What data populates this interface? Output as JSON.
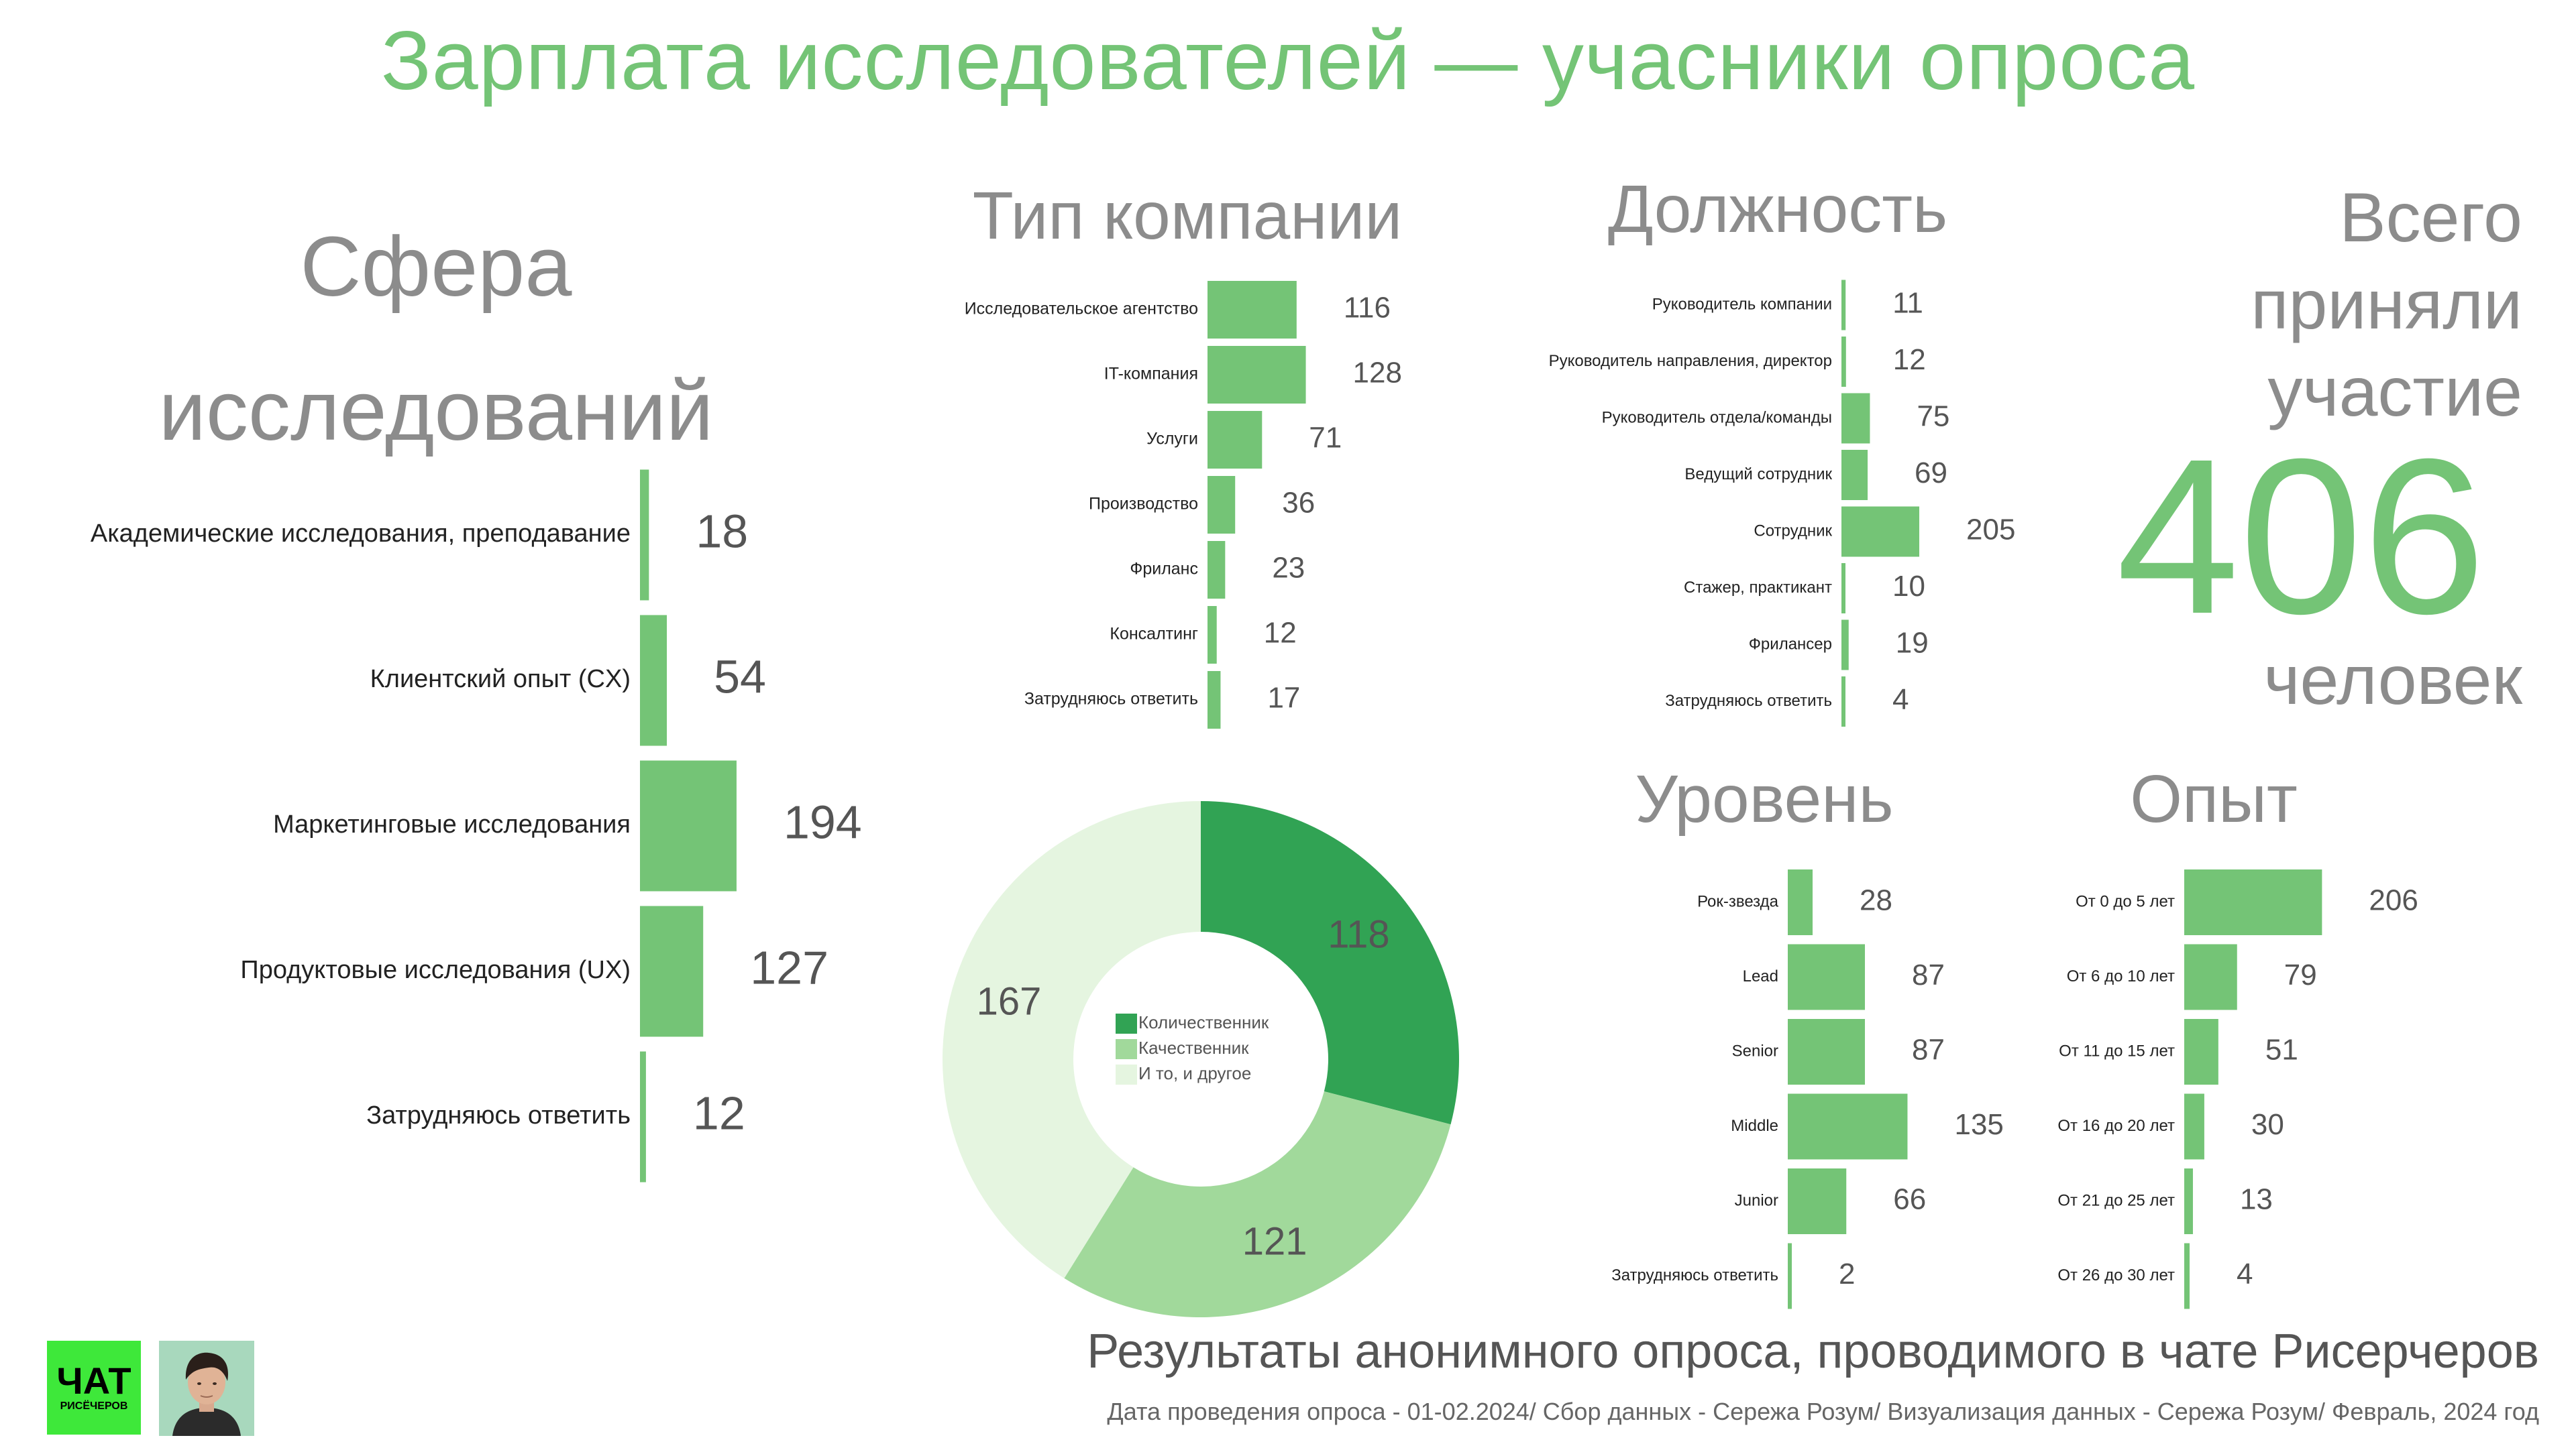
{
  "title": "Зарплата исследователей — учасники опроса",
  "sections": {
    "sphere": "Сфера исследований",
    "company": "Тип компании",
    "position": "Должность",
    "level": "Уровень",
    "experience": "Опыт"
  },
  "total": {
    "line1": "Всего",
    "line2": "приняли",
    "line3": "участие",
    "number": "406",
    "unit": "человек"
  },
  "footer": {
    "main": "Результаты анонимного опроса,  проводимого в чате Рисерчеров",
    "sub": "Дата проведения опроса - 01-02.2024/ Сбор данных - Сережа Розум/ Визуализация данных - Сережа Розум/ Февраль, 2024 год"
  },
  "logo": {
    "line1": "ЧАТ",
    "line2": "РИСЁЧЕРОВ"
  },
  "colors": {
    "accent": "#74c476",
    "dark_green": "#31a354",
    "mid_green": "#a1d99b",
    "light_green": "#e5f5e0",
    "gray_text": "#8c8c8c"
  },
  "chart_data": [
    {
      "id": "sphere",
      "type": "bar",
      "orientation": "horizontal",
      "title": "Сфера исследований",
      "categories": [
        "Академические исследования, преподавание",
        "Клиентский опыт (CX)",
        "Маркетинговые исследования",
        "Продуктовые исследования (UX)",
        "Затрудняюсь ответить"
      ],
      "values": [
        18,
        54,
        194,
        127,
        12
      ]
    },
    {
      "id": "company",
      "type": "bar",
      "orientation": "horizontal",
      "title": "Тип компании",
      "categories": [
        "Исследовательское агентство",
        "IT-компания",
        "Услуги",
        "Производство",
        "Фриланс",
        "Консалтинг",
        "Затрудняюсь ответить"
      ],
      "values": [
        116,
        128,
        71,
        36,
        23,
        12,
        17
      ]
    },
    {
      "id": "position",
      "type": "bar",
      "orientation": "horizontal",
      "title": "Должность",
      "categories": [
        "Руководитель компании",
        "Руководитель направления, директор",
        "Руководитель отдела/команды",
        "Ведущий сотрудник",
        "Сотрудник",
        "Стажер, практикант",
        "Фрилансер",
        "Затрудняюсь ответить"
      ],
      "values": [
        11,
        12,
        75,
        69,
        205,
        10,
        19,
        4
      ]
    },
    {
      "id": "level",
      "type": "bar",
      "orientation": "horizontal",
      "title": "Уровень",
      "categories": [
        "Рок-звезда",
        "Lead",
        "Senior",
        "Middle",
        "Junior",
        "Затрудняюсь ответить"
      ],
      "values": [
        28,
        87,
        87,
        135,
        66,
        2
      ]
    },
    {
      "id": "experience",
      "type": "bar",
      "orientation": "horizontal",
      "title": "Опыт",
      "categories": [
        "От 0 до 5 лет",
        "От 6 до 10 лет",
        "От 11 до 15 лет",
        "От 16 до 20 лет",
        "От 21 до 25 лет",
        "От 26 до 30 лет"
      ],
      "values": [
        206,
        79,
        51,
        30,
        13,
        4
      ]
    },
    {
      "id": "method",
      "type": "pie",
      "donut": true,
      "categories": [
        "Количественник",
        "Качественник",
        "И то, и другое"
      ],
      "values": [
        118,
        121,
        167
      ],
      "colors": [
        "#31a354",
        "#a1d99b",
        "#e5f5e0"
      ],
      "legend": "center"
    }
  ]
}
